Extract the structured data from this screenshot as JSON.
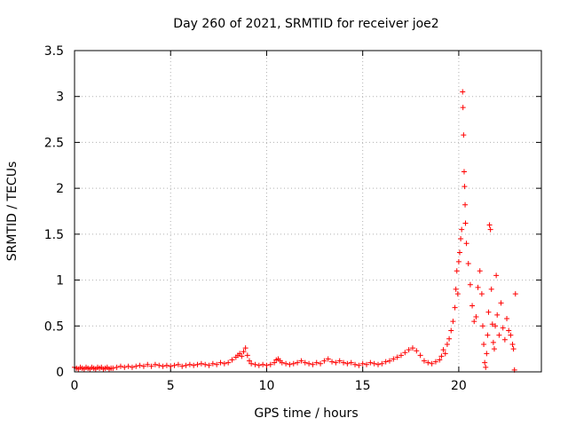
{
  "chart_data": {
    "type": "scatter",
    "title": "Day 260 of 2021, SRMTID for receiver joe2",
    "xlabel": "GPS time / hours",
    "ylabel": "SRMTID / TECUs",
    "xlim": [
      0,
      24.3
    ],
    "ylim": [
      0,
      3.5
    ],
    "x_ticks": [
      0,
      5,
      10,
      15,
      20
    ],
    "x_tick_labels": [
      "0",
      "5",
      "10",
      "15",
      "20"
    ],
    "y_ticks": [
      0,
      0.5,
      1,
      1.5,
      2,
      2.5,
      3,
      3.5
    ],
    "y_tick_labels": [
      "0",
      "0.5",
      "1",
      "1.5",
      "2",
      "2.5",
      "3",
      "3.5"
    ],
    "grid": true,
    "marker": "+",
    "colors": {
      "series": "#ff0000",
      "grid": "#b0b0b0",
      "axis": "#000000"
    },
    "series": [
      {
        "name": "SRMTID",
        "points": [
          [
            0.0,
            0.05
          ],
          [
            0.1,
            0.04
          ],
          [
            0.2,
            0.03
          ],
          [
            0.3,
            0.05
          ],
          [
            0.4,
            0.04
          ],
          [
            0.5,
            0.03
          ],
          [
            0.6,
            0.05
          ],
          [
            0.7,
            0.04
          ],
          [
            0.8,
            0.03
          ],
          [
            0.9,
            0.05
          ],
          [
            1.0,
            0.04
          ],
          [
            1.1,
            0.03
          ],
          [
            1.2,
            0.05
          ],
          [
            1.3,
            0.04
          ],
          [
            1.4,
            0.05
          ],
          [
            1.5,
            0.03
          ],
          [
            1.6,
            0.04
          ],
          [
            1.7,
            0.05
          ],
          [
            1.8,
            0.03
          ],
          [
            1.9,
            0.04
          ],
          [
            2.0,
            0.04
          ],
          [
            2.2,
            0.05
          ],
          [
            2.4,
            0.06
          ],
          [
            2.6,
            0.05
          ],
          [
            2.8,
            0.06
          ],
          [
            3.0,
            0.05
          ],
          [
            3.2,
            0.06
          ],
          [
            3.4,
            0.07
          ],
          [
            3.6,
            0.06
          ],
          [
            3.8,
            0.08
          ],
          [
            4.0,
            0.06
          ],
          [
            4.2,
            0.08
          ],
          [
            4.4,
            0.07
          ],
          [
            4.6,
            0.06
          ],
          [
            4.8,
            0.07
          ],
          [
            5.0,
            0.06
          ],
          [
            5.2,
            0.07
          ],
          [
            5.4,
            0.08
          ],
          [
            5.6,
            0.06
          ],
          [
            5.8,
            0.07
          ],
          [
            6.0,
            0.08
          ],
          [
            6.2,
            0.07
          ],
          [
            6.4,
            0.08
          ],
          [
            6.6,
            0.09
          ],
          [
            6.8,
            0.08
          ],
          [
            7.0,
            0.07
          ],
          [
            7.2,
            0.09
          ],
          [
            7.4,
            0.08
          ],
          [
            7.6,
            0.1
          ],
          [
            7.8,
            0.09
          ],
          [
            8.0,
            0.1
          ],
          [
            8.2,
            0.13
          ],
          [
            8.4,
            0.16
          ],
          [
            8.5,
            0.18
          ],
          [
            8.6,
            0.2
          ],
          [
            8.7,
            0.17
          ],
          [
            8.8,
            0.22
          ],
          [
            8.9,
            0.26
          ],
          [
            9.0,
            0.18
          ],
          [
            9.1,
            0.12
          ],
          [
            9.2,
            0.09
          ],
          [
            9.4,
            0.08
          ],
          [
            9.6,
            0.07
          ],
          [
            9.8,
            0.08
          ],
          [
            10.0,
            0.07
          ],
          [
            10.2,
            0.08
          ],
          [
            10.4,
            0.1
          ],
          [
            10.5,
            0.13
          ],
          [
            10.6,
            0.14
          ],
          [
            10.7,
            0.12
          ],
          [
            10.8,
            0.1
          ],
          [
            11.0,
            0.09
          ],
          [
            11.2,
            0.08
          ],
          [
            11.4,
            0.09
          ],
          [
            11.6,
            0.1
          ],
          [
            11.8,
            0.12
          ],
          [
            12.0,
            0.1
          ],
          [
            12.2,
            0.09
          ],
          [
            12.4,
            0.08
          ],
          [
            12.6,
            0.1
          ],
          [
            12.8,
            0.09
          ],
          [
            13.0,
            0.12
          ],
          [
            13.2,
            0.14
          ],
          [
            13.4,
            0.11
          ],
          [
            13.6,
            0.1
          ],
          [
            13.8,
            0.12
          ],
          [
            14.0,
            0.1
          ],
          [
            14.2,
            0.09
          ],
          [
            14.4,
            0.1
          ],
          [
            14.6,
            0.08
          ],
          [
            14.8,
            0.07
          ],
          [
            15.0,
            0.09
          ],
          [
            15.2,
            0.08
          ],
          [
            15.4,
            0.1
          ],
          [
            15.6,
            0.09
          ],
          [
            15.8,
            0.08
          ],
          [
            16.0,
            0.09
          ],
          [
            16.2,
            0.11
          ],
          [
            16.4,
            0.12
          ],
          [
            16.6,
            0.14
          ],
          [
            16.8,
            0.16
          ],
          [
            17.0,
            0.18
          ],
          [
            17.2,
            0.21
          ],
          [
            17.4,
            0.24
          ],
          [
            17.6,
            0.26
          ],
          [
            17.8,
            0.23
          ],
          [
            18.0,
            0.18
          ],
          [
            18.2,
            0.12
          ],
          [
            18.4,
            0.1
          ],
          [
            18.6,
            0.09
          ],
          [
            18.8,
            0.11
          ],
          [
            19.0,
            0.13
          ],
          [
            19.1,
            0.17
          ],
          [
            19.2,
            0.24
          ],
          [
            19.3,
            0.2
          ],
          [
            19.4,
            0.3
          ],
          [
            19.5,
            0.36
          ],
          [
            19.6,
            0.45
          ],
          [
            19.7,
            0.55
          ],
          [
            19.8,
            0.7
          ],
          [
            19.85,
            0.9
          ],
          [
            19.9,
            1.1
          ],
          [
            19.95,
            0.85
          ],
          [
            20.0,
            1.2
          ],
          [
            20.05,
            1.3
          ],
          [
            20.1,
            1.45
          ],
          [
            20.15,
            1.55
          ],
          [
            20.2,
            3.05
          ],
          [
            20.22,
            2.88
          ],
          [
            20.25,
            2.58
          ],
          [
            20.28,
            2.18
          ],
          [
            20.3,
            2.02
          ],
          [
            20.33,
            1.82
          ],
          [
            20.35,
            1.62
          ],
          [
            20.4,
            1.4
          ],
          [
            20.5,
            1.18
          ],
          [
            20.6,
            0.95
          ],
          [
            20.7,
            0.72
          ],
          [
            20.8,
            0.55
          ],
          [
            20.9,
            0.6
          ],
          [
            21.0,
            0.92
          ],
          [
            21.1,
            1.1
          ],
          [
            21.2,
            0.85
          ],
          [
            21.25,
            0.5
          ],
          [
            21.3,
            0.3
          ],
          [
            21.35,
            0.1
          ],
          [
            21.4,
            0.05
          ],
          [
            21.45,
            0.2
          ],
          [
            21.5,
            0.4
          ],
          [
            21.55,
            0.65
          ],
          [
            21.6,
            1.6
          ],
          [
            21.65,
            1.55
          ],
          [
            21.7,
            0.9
          ],
          [
            21.75,
            0.52
          ],
          [
            21.8,
            0.32
          ],
          [
            21.85,
            0.25
          ],
          [
            21.9,
            0.5
          ],
          [
            21.95,
            1.05
          ],
          [
            22.0,
            0.62
          ],
          [
            22.1,
            0.4
          ],
          [
            22.2,
            0.75
          ],
          [
            22.3,
            0.48
          ],
          [
            22.4,
            0.35
          ],
          [
            22.5,
            0.58
          ],
          [
            22.6,
            0.45
          ],
          [
            22.7,
            0.4
          ],
          [
            22.8,
            0.3
          ],
          [
            22.85,
            0.25
          ],
          [
            22.9,
            0.02
          ],
          [
            22.95,
            0.85
          ]
        ]
      }
    ]
  }
}
